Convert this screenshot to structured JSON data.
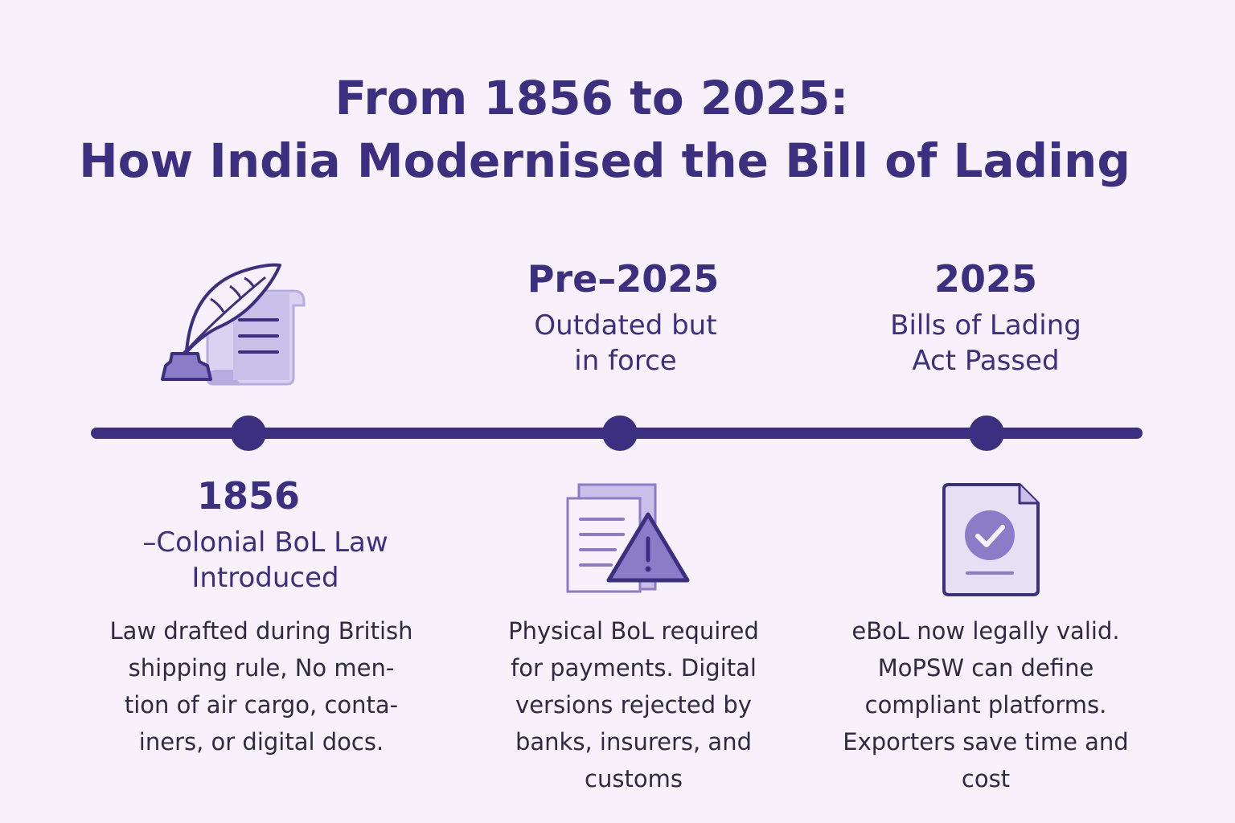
{
  "title": {
    "line1": "From 1856 to 2025:",
    "line2": "How India Modernised the Bill of Lading"
  },
  "milestones": [
    {
      "year": "1856",
      "subtitle_line1": "–Colonial BoL Law",
      "subtitle_line2": "Introduced",
      "icon": "quill-scroll-icon",
      "description": [
        "Law drafted during British",
        "shipping rule, No men-",
        "tion of air cargo, conta-",
        "iners, or digital docs."
      ]
    },
    {
      "year": "Pre–2025",
      "subtitle_line1": "Outdated but",
      "subtitle_line2": "in force",
      "icon": "document-warning-icon",
      "description": [
        "Physical BoL required",
        "for payments. Digital",
        "versions rejected by",
        "banks, insurers, and",
        "customs"
      ]
    },
    {
      "year": "2025",
      "subtitle_line1": "Bills of Lading",
      "subtitle_line2": "Act Passed",
      "icon": "document-check-icon",
      "description": [
        "eBoL now legally valid.",
        "MoPSW can define",
        "compliant platforms.",
        "Exporters save time and",
        "cost"
      ]
    }
  ],
  "colors": {
    "background": "#f6f1fa",
    "primary": "#3d2f80",
    "accent": "#8b7cc8",
    "light_accent": "#d9d2f0"
  }
}
